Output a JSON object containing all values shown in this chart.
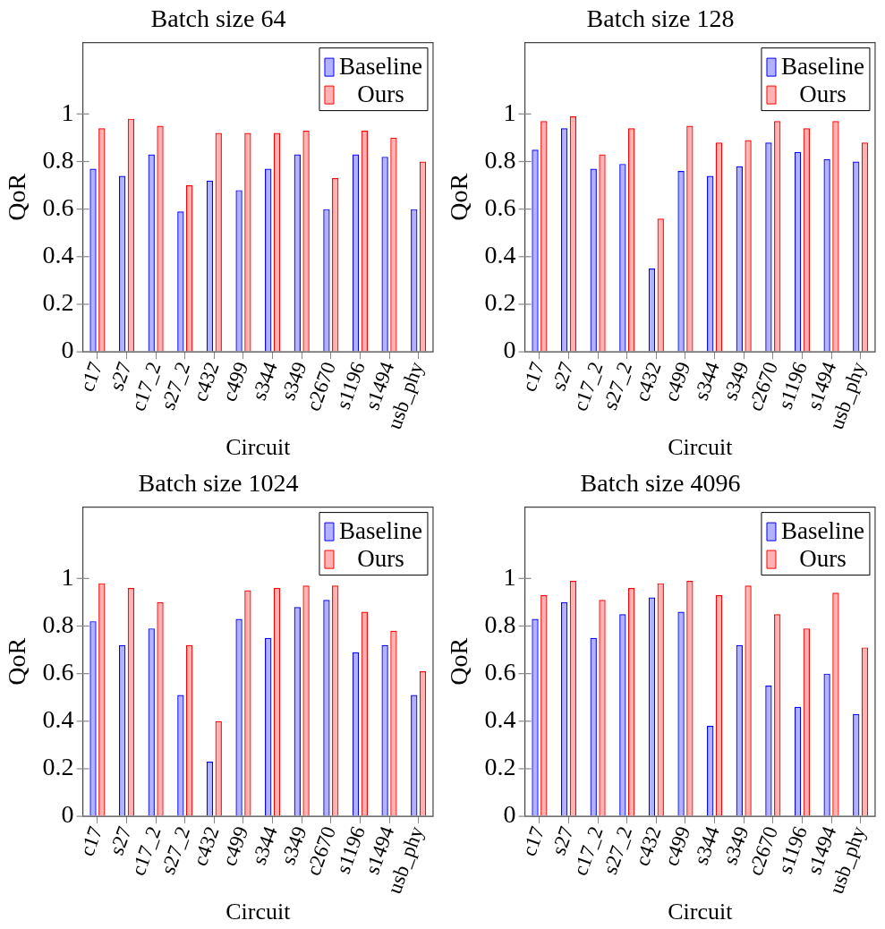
{
  "chart_data": [
    {
      "type": "bar",
      "title": "Batch size 64",
      "xlabel": "Circuit",
      "ylabel": "QoR",
      "legend": "top right",
      "ylim": [
        0,
        1.3
      ],
      "yticks": [
        0,
        0.2,
        0.4,
        0.6,
        0.8,
        1
      ],
      "categories": [
        "c17",
        "s27",
        "c17_2",
        "s27_2",
        "c432",
        "c499",
        "s344",
        "s349",
        "c2670",
        "s1196",
        "s1494",
        "usb_phy"
      ],
      "series": [
        {
          "name": "Baseline",
          "color": "#0000ff",
          "values": [
            0.77,
            0.74,
            0.83,
            0.59,
            0.72,
            0.68,
            0.77,
            0.83,
            0.6,
            0.83,
            0.82,
            0.6
          ]
        },
        {
          "name": "Ours",
          "color": "#ff0000",
          "values": [
            0.94,
            0.98,
            0.95,
            0.7,
            0.92,
            0.92,
            0.92,
            0.93,
            0.73,
            0.93,
            0.9,
            0.8
          ]
        }
      ]
    },
    {
      "type": "bar",
      "title": "Batch size 128",
      "xlabel": "Circuit",
      "ylabel": "QoR",
      "legend": "top right",
      "ylim": [
        0,
        1.3
      ],
      "yticks": [
        0,
        0.2,
        0.4,
        0.6,
        0.8,
        1
      ],
      "categories": [
        "c17",
        "s27",
        "c17_2",
        "s27_2",
        "c432",
        "c499",
        "s344",
        "s349",
        "c2670",
        "s1196",
        "s1494",
        "usb_phy"
      ],
      "series": [
        {
          "name": "Baseline",
          "color": "#0000ff",
          "values": [
            0.85,
            0.94,
            0.77,
            0.79,
            0.35,
            0.76,
            0.74,
            0.78,
            0.88,
            0.84,
            0.81,
            0.8
          ]
        },
        {
          "name": "Ours",
          "color": "#ff0000",
          "values": [
            0.97,
            0.99,
            0.83,
            0.94,
            0.56,
            0.95,
            0.88,
            0.89,
            0.97,
            0.94,
            0.97,
            0.88
          ]
        }
      ]
    },
    {
      "type": "bar",
      "title": "Batch size 1024",
      "xlabel": "Circuit",
      "ylabel": "QoR",
      "legend": "top right",
      "ylim": [
        0,
        1.3
      ],
      "yticks": [
        0,
        0.2,
        0.4,
        0.6,
        0.8,
        1
      ],
      "categories": [
        "c17",
        "s27",
        "c17_2",
        "s27_2",
        "c432",
        "c499",
        "s344",
        "s349",
        "c2670",
        "s1196",
        "s1494",
        "usb_phy"
      ],
      "series": [
        {
          "name": "Baseline",
          "color": "#0000ff",
          "values": [
            0.82,
            0.72,
            0.79,
            0.51,
            0.23,
            0.83,
            0.75,
            0.88,
            0.91,
            0.69,
            0.72,
            0.51
          ]
        },
        {
          "name": "Ours",
          "color": "#ff0000",
          "values": [
            0.98,
            0.96,
            0.9,
            0.72,
            0.4,
            0.95,
            0.96,
            0.97,
            0.97,
            0.86,
            0.78,
            0.61
          ]
        }
      ]
    },
    {
      "type": "bar",
      "title": "Batch size 4096",
      "xlabel": "Circuit",
      "ylabel": "QoR",
      "legend": "top right",
      "ylim": [
        0,
        1.3
      ],
      "yticks": [
        0,
        0.2,
        0.4,
        0.6,
        0.8,
        1
      ],
      "categories": [
        "c17",
        "s27",
        "c17_2",
        "s27_2",
        "c432",
        "c499",
        "s344",
        "s349",
        "c2670",
        "s1196",
        "s1494",
        "usb_phy"
      ],
      "series": [
        {
          "name": "Baseline",
          "color": "#0000ff",
          "values": [
            0.83,
            0.9,
            0.75,
            0.85,
            0.92,
            0.86,
            0.38,
            0.72,
            0.55,
            0.46,
            0.6,
            0.43
          ]
        },
        {
          "name": "Ours",
          "color": "#ff0000",
          "values": [
            0.93,
            0.99,
            0.91,
            0.96,
            0.98,
            0.99,
            0.93,
            0.97,
            0.85,
            0.79,
            0.94,
            0.71
          ]
        }
      ]
    }
  ]
}
